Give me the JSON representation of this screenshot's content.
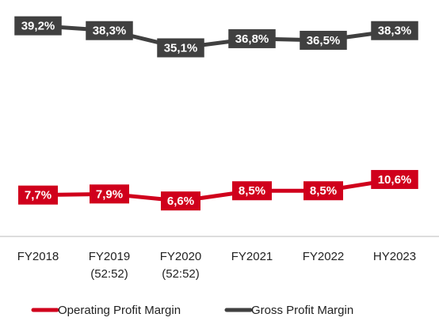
{
  "chart_data": {
    "type": "line",
    "categories": [
      "FY2018",
      "FY2019\n(52:52)",
      "FY2020\n(52:52)",
      "FY2021",
      "FY2022",
      "HY2023"
    ],
    "series": [
      {
        "name": "Operating Profit Margin",
        "color": "#d0001c",
        "values": [
          7.7,
          7.9,
          6.6,
          8.5,
          8.5,
          10.6
        ],
        "value_labels": [
          "7,7%",
          "7,9%",
          "6,6%",
          "8,5%",
          "8,5%",
          "10,6%"
        ]
      },
      {
        "name": "Gross Profit Margin",
        "color": "#404040",
        "values": [
          39.2,
          38.3,
          35.1,
          36.8,
          36.5,
          38.3
        ],
        "value_labels": [
          "39,2%",
          "38,3%",
          "35,1%",
          "36,8%",
          "36,5%",
          "38,3%"
        ]
      }
    ],
    "ylim": [
      0,
      44
    ],
    "legend": "bottom"
  }
}
